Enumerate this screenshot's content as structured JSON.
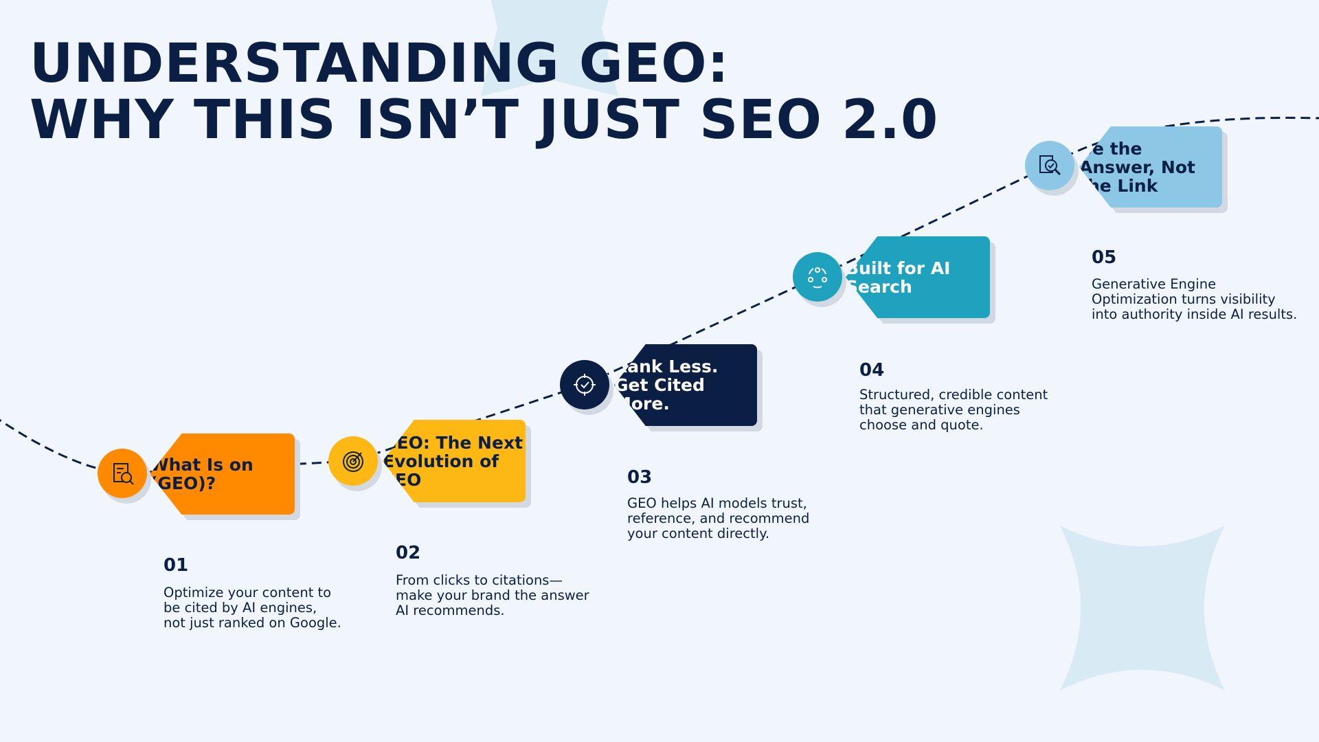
{
  "title": {
    "line1": "UNDERSTANDING GEO:",
    "line2": "WHY THIS ISN’T JUST SEO 2.0"
  },
  "steps": [
    {
      "number": "01",
      "label": "What Is on (GEO)?",
      "description": "Optimize your content to be cited by AI engines, not just ranked on Google.",
      "color": "#ff8a00",
      "text_color": "#0b1f44",
      "icon": "document-search-icon"
    },
    {
      "number": "02",
      "label": "GEO: The Next Evolution of SEO",
      "description": "From clicks to citations—make your brand the answer AI recommends.",
      "color": "#fdb813",
      "text_color": "#0b1f44",
      "icon": "target-icon"
    },
    {
      "number": "03",
      "label": "Rank Less. Get Cited More.",
      "description": "GEO helps AI models trust, reference, and recommend your content directly.",
      "color": "#0b1f44",
      "text_color": "#ffffff",
      "icon": "crosshair-check-icon"
    },
    {
      "number": "04",
      "label": "Built for AI Search",
      "description": "Structured, credible content that generative engines choose and quote.",
      "color": "#1fa2bd",
      "text_color": "#ffffff",
      "icon": "people-network-icon"
    },
    {
      "number": "05",
      "label": "Be the Answer, Not the Link",
      "description": "Generative Engine Optimization turns visibility into authority inside AI results.",
      "color": "#8cc8e6",
      "text_color": "#0b1f44",
      "icon": "document-magnifier-check-icon"
    }
  ]
}
